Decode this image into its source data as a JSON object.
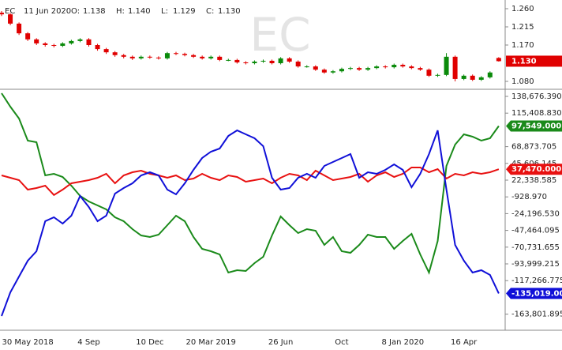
{
  "chart_data": [
    {
      "type": "candlestick",
      "symbol": "EC",
      "date": "11 Jun 2020",
      "ohlc_labels": [
        "O:",
        "H:",
        "L:",
        "C:"
      ],
      "ohlc_value_labels": [
        "1.138",
        "1.140",
        "1.129",
        "1.130"
      ],
      "up_color": "#0a8a0a",
      "down_color": "#e00000",
      "ylim": [
        1.0624,
        1.2815
      ],
      "yticks": [
        {
          "value": 1.26,
          "label": "1.260"
        },
        {
          "value": 1.215,
          "label": "1.215"
        },
        {
          "value": 1.17,
          "label": "1.170"
        },
        {
          "value": 1.08,
          "label": "1.080"
        }
      ],
      "values": [
        [
          1.25,
          1.254,
          1.242,
          1.246
        ],
        [
          1.246,
          1.249,
          1.219,
          1.223
        ],
        [
          1.223,
          1.226,
          1.195,
          1.199
        ],
        [
          1.199,
          1.202,
          1.18,
          1.184
        ],
        [
          1.184,
          1.187,
          1.17,
          1.174
        ],
        [
          1.174,
          1.177,
          1.166,
          1.17
        ],
        [
          1.17,
          1.173,
          1.164,
          1.168
        ],
        [
          1.168,
          1.177,
          1.165,
          1.174
        ],
        [
          1.174,
          1.183,
          1.171,
          1.18
        ],
        [
          1.18,
          1.187,
          1.177,
          1.184
        ],
        [
          1.184,
          1.187,
          1.166,
          1.17
        ],
        [
          1.17,
          1.173,
          1.156,
          1.16
        ],
        [
          1.16,
          1.163,
          1.148,
          1.152
        ],
        [
          1.152,
          1.155,
          1.141,
          1.145
        ],
        [
          1.145,
          1.148,
          1.137,
          1.141
        ],
        [
          1.141,
          1.144,
          1.133,
          1.137
        ],
        [
          1.137,
          1.144,
          1.134,
          1.141
        ],
        [
          1.141,
          1.144,
          1.136,
          1.139
        ],
        [
          1.139,
          1.142,
          1.134,
          1.137
        ],
        [
          1.137,
          1.153,
          1.134,
          1.15
        ],
        [
          1.15,
          1.153,
          1.145,
          1.148
        ],
        [
          1.148,
          1.151,
          1.142,
          1.145
        ],
        [
          1.145,
          1.148,
          1.138,
          1.141
        ],
        [
          1.141,
          1.144,
          1.134,
          1.137
        ],
        [
          1.137,
          1.144,
          1.134,
          1.141
        ],
        [
          1.141,
          1.144,
          1.13,
          1.133
        ],
        [
          1.133,
          1.136,
          1.13,
          1.133
        ],
        [
          1.133,
          1.136,
          1.124,
          1.127
        ],
        [
          1.127,
          1.13,
          1.122,
          1.125
        ],
        [
          1.125,
          1.132,
          1.122,
          1.129
        ],
        [
          1.129,
          1.134,
          1.126,
          1.131
        ],
        [
          1.131,
          1.134,
          1.122,
          1.125
        ],
        [
          1.125,
          1.14,
          1.122,
          1.137
        ],
        [
          1.137,
          1.14,
          1.126,
          1.129
        ],
        [
          1.129,
          1.132,
          1.114,
          1.117
        ],
        [
          1.117,
          1.12,
          1.114,
          1.117
        ],
        [
          1.117,
          1.12,
          1.106,
          1.109
        ],
        [
          1.109,
          1.112,
          1.099,
          1.102
        ],
        [
          1.102,
          1.108,
          1.099,
          1.105
        ],
        [
          1.105,
          1.114,
          1.102,
          1.111
        ],
        [
          1.111,
          1.116,
          1.108,
          1.113
        ],
        [
          1.113,
          1.116,
          1.106,
          1.109
        ],
        [
          1.109,
          1.116,
          1.106,
          1.113
        ],
        [
          1.113,
          1.12,
          1.11,
          1.117
        ],
        [
          1.117,
          1.12,
          1.112,
          1.115
        ],
        [
          1.115,
          1.124,
          1.112,
          1.121
        ],
        [
          1.121,
          1.124,
          1.114,
          1.117
        ],
        [
          1.117,
          1.12,
          1.11,
          1.113
        ],
        [
          1.113,
          1.116,
          1.106,
          1.109
        ],
        [
          1.109,
          1.112,
          1.091,
          1.094
        ],
        [
          1.094,
          1.099,
          1.091,
          1.096
        ],
        [
          1.096,
          1.15,
          1.093,
          1.141
        ],
        [
          1.141,
          1.144,
          1.08,
          1.086
        ],
        [
          1.086,
          1.097,
          1.083,
          1.094
        ],
        [
          1.094,
          1.097,
          1.081,
          1.084
        ],
        [
          1.084,
          1.093,
          1.081,
          1.09
        ],
        [
          1.09,
          1.105,
          1.087,
          1.102
        ],
        [
          1.138,
          1.14,
          1.129,
          1.13
        ]
      ]
    },
    {
      "type": "line",
      "categories": [
        null,
        null,
        null,
        "30 May 2018",
        null,
        null,
        null,
        null,
        null,
        null,
        "4 Sep",
        null,
        null,
        null,
        null,
        null,
        null,
        "10 Dec",
        null,
        null,
        null,
        null,
        null,
        null,
        "20 Mar 2019",
        null,
        null,
        null,
        null,
        null,
        null,
        null,
        "26 Jun",
        null,
        null,
        null,
        null,
        null,
        null,
        "Oct",
        null,
        null,
        null,
        null,
        null,
        null,
        "8 Jan 2020",
        null,
        null,
        null,
        null,
        null,
        null,
        "16 Apr",
        null,
        null,
        null,
        null
      ],
      "ylim": [
        -186184,
        147456
      ],
      "yticks": [
        {
          "value": 138676.39,
          "label": "138,676.390"
        },
        {
          "value": 115408.83,
          "label": "115,408.830"
        },
        {
          "value": 68873.705,
          "label": "68,873.705"
        },
        {
          "value": 45606.145,
          "label": "45,606.145"
        },
        {
          "value": 22338.585,
          "label": "22,338.585"
        },
        {
          "value": -928.97,
          "label": "-928.970"
        },
        {
          "value": -24196.53,
          "label": "-24,196.530"
        },
        {
          "value": -47464.095,
          "label": "-47,464.095"
        },
        {
          "value": -70731.655,
          "label": "-70,731.655"
        },
        {
          "value": -93999.215,
          "label": "-93,999.215"
        },
        {
          "value": -117266.775,
          "label": "-117,266.775"
        },
        {
          "value": -163801.895,
          "label": "-163,801.895"
        }
      ],
      "series": [
        {
          "color": "#1a8a1a",
          "last_value_label": "97,549.000",
          "values": [
            143066,
            124409,
            107946,
            77216,
            75021,
            28926,
            31121,
            26731,
            14659,
            392,
            -7290,
            -12779,
            -18266,
            -29241,
            -34728,
            -45703,
            -54483,
            -56678,
            -53386,
            -40216,
            -27046,
            -34728,
            -56678,
            -73141,
            -76433,
            -80823,
            -106066,
            -102773,
            -103871,
            -92896,
            -84116,
            -54483,
            -28143,
            -40216,
            -51191,
            -45703,
            -47898,
            -67653,
            -56678,
            -76433,
            -78628,
            -67653,
            -53386,
            -56678,
            -56678,
            -73141,
            -62166,
            -52288,
            -80823,
            -106066,
            -62166,
            42096,
            71728,
            85996,
            82703,
            77216,
            80508,
            97549
          ]
        },
        {
          "color": "#e81010",
          "last_value_label": "37,470.000",
          "values": [
            28926,
            25634,
            22341,
            9171,
            11366,
            14659,
            1684,
            9171,
            17951,
            20146,
            22341,
            25634,
            31121,
            17951,
            28926,
            33316,
            35511,
            31121,
            28926,
            25634,
            28926,
            22341,
            24536,
            31121,
            25634,
            22341,
            28926,
            26731,
            20146,
            22341,
            24536,
            17951,
            25634,
            31121,
            28926,
            22341,
            35511,
            28926,
            22341,
            24536,
            26731,
            31121,
            20146,
            28926,
            33316,
            26731,
            31121,
            39901,
            39901,
            33316,
            37706,
            24536,
            31121,
            28926,
            33316,
            31121,
            33316,
            37470
          ]
        },
        {
          "color": "#1010d8",
          "last_value_label": "-135,019.000",
          "values": [
            -166429,
            -133504,
            -111554,
            -89604,
            -76433,
            -34728,
            -29241,
            -38021,
            -27046,
            392,
            -14974,
            -34728,
            -27046,
            3683,
            11366,
            17951,
            28926,
            33316,
            28926,
            9171,
            2586,
            17951,
            36609,
            53071,
            61851,
            66241,
            83801,
            91483,
            85996,
            80508,
            69533,
            25634,
            9171,
            11366,
            25634,
            31121,
            25634,
            42096,
            47584,
            53071,
            58558,
            25634,
            33316,
            31121,
            36609,
            44291,
            36609,
            12464,
            31121,
            58558,
            91483,
            9171,
            -67653,
            -89604,
            -106066,
            -102773,
            -109358,
            -135019
          ]
        }
      ]
    }
  ]
}
